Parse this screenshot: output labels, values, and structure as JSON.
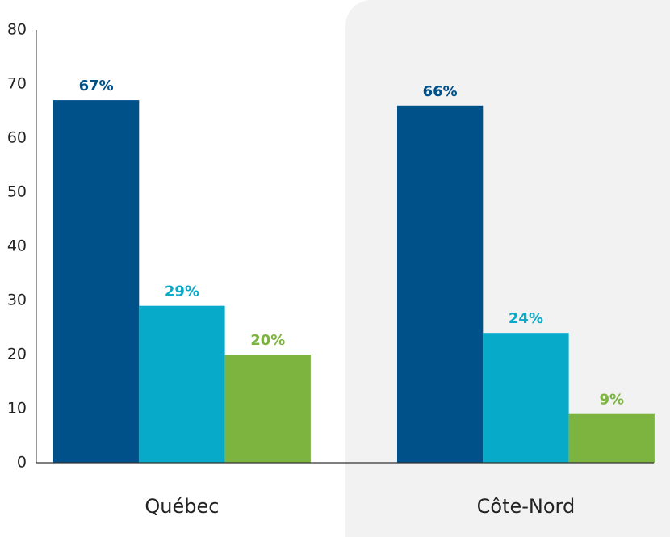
{
  "chart_data": {
    "type": "bar",
    "categories": [
      "Québec",
      "Côte-Nord"
    ],
    "series": [
      {
        "color": "#00508a",
        "values": [
          67,
          66
        ],
        "value_labels": [
          "67%",
          "66%"
        ]
      },
      {
        "color": "#07aac9",
        "values": [
          29,
          24
        ],
        "value_labels": [
          "29%",
          "24%"
        ]
      },
      {
        "color": "#7cb43f",
        "values": [
          20,
          9
        ],
        "value_labels": [
          "20%",
          "9%"
        ]
      }
    ],
    "ylim": [
      0,
      80
    ],
    "yticks": [
      0,
      10,
      20,
      30,
      40,
      50,
      60,
      70,
      80
    ],
    "grid": false
  }
}
